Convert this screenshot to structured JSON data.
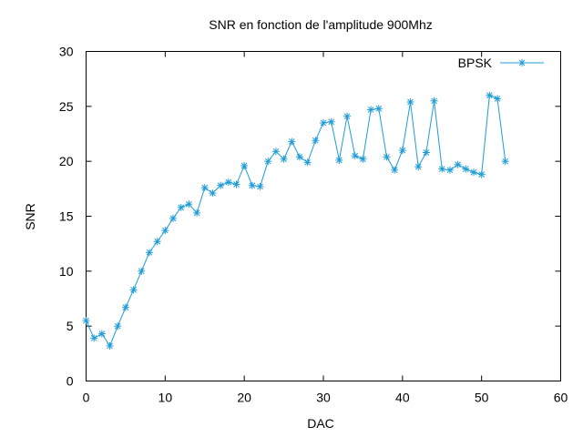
{
  "chart_data": {
    "type": "line",
    "title": "SNR en fonction de l'amplitude 900Mhz",
    "xlabel": "DAC",
    "ylabel": "SNR",
    "xlim": [
      0,
      60
    ],
    "ylim": [
      0,
      30
    ],
    "xticks": [
      "0",
      "10",
      "20",
      "30",
      "40",
      "50",
      "60"
    ],
    "yticks": [
      "0",
      "5",
      "10",
      "15",
      "20",
      "25",
      "30"
    ],
    "grid": false,
    "legend_position": "top-right",
    "series": [
      {
        "name": "BPSK",
        "color": "#1e9bd7",
        "marker": "asterisk",
        "x": [
          0,
          1,
          2,
          3,
          4,
          5,
          6,
          7,
          8,
          9,
          10,
          11,
          12,
          13,
          14,
          15,
          16,
          17,
          18,
          19,
          20,
          21,
          22,
          23,
          24,
          25,
          26,
          27,
          28,
          29,
          30,
          31,
          32,
          33,
          34,
          35,
          36,
          37,
          38,
          39,
          40,
          41,
          42,
          43,
          44,
          45,
          46,
          47,
          48,
          49,
          50,
          51,
          52,
          53
        ],
        "y": [
          5.5,
          3.9,
          4.3,
          3.2,
          5.0,
          6.7,
          8.3,
          10.0,
          11.7,
          12.7,
          13.7,
          14.8,
          15.8,
          16.1,
          15.3,
          17.6,
          17.1,
          17.8,
          18.1,
          17.9,
          19.6,
          17.8,
          17.7,
          20.0,
          20.9,
          20.2,
          21.8,
          20.4,
          19.9,
          21.9,
          23.5,
          23.6,
          20.1,
          24.1,
          20.5,
          20.2,
          24.7,
          24.8,
          20.4,
          19.2,
          21.0,
          25.4,
          19.5,
          20.8,
          25.5,
          19.3,
          19.2,
          19.7,
          19.3,
          19.0,
          18.8,
          26.0,
          25.7,
          20.0
        ]
      }
    ]
  }
}
